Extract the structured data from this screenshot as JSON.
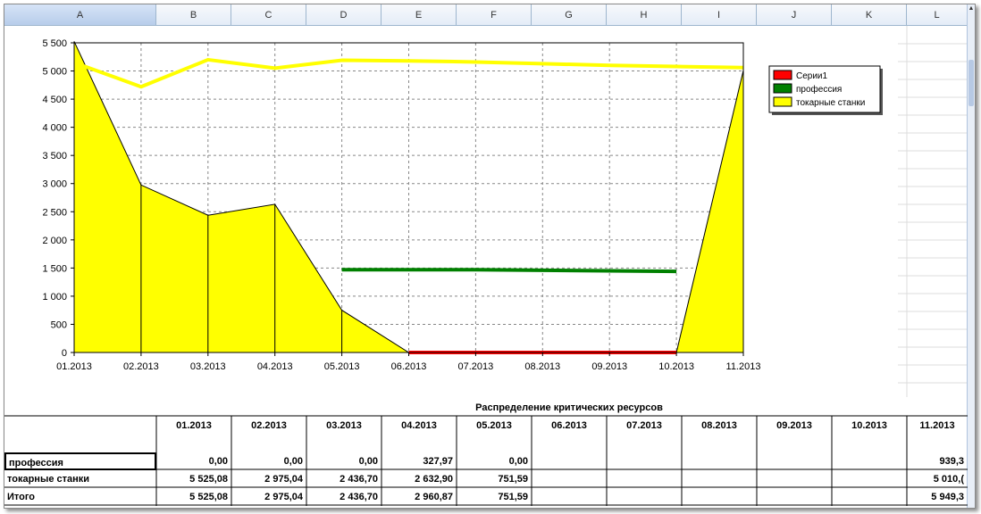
{
  "columns": [
    "A",
    "B",
    "C",
    "D",
    "E",
    "F",
    "G",
    "H",
    "I",
    "J",
    "K",
    "L"
  ],
  "selected_column": "A",
  "chart_data": {
    "type": "area",
    "categories": [
      "01.2013",
      "02.2013",
      "03.2013",
      "04.2013",
      "05.2013",
      "06.2013",
      "07.2013",
      "08.2013",
      "09.2013",
      "10.2013",
      "11.2013"
    ],
    "y_ticks": [
      "0",
      "500",
      "1 000",
      "1 500",
      "2 000",
      "2 500",
      "3 000",
      "3 500",
      "4 000",
      "4 500",
      "5 000",
      "5 500"
    ],
    "ylim": [
      0,
      5500
    ],
    "grid": true,
    "legend_position": "right",
    "series": [
      {
        "name": "Серии1",
        "type": "line",
        "color": "#ff0000",
        "values": [
          null,
          null,
          null,
          null,
          null,
          0,
          0,
          0,
          0,
          0,
          null
        ]
      },
      {
        "name": "профессия",
        "type": "line",
        "color": "#008000",
        "values": [
          null,
          null,
          null,
          null,
          1470,
          1470,
          1470,
          1460,
          1450,
          1440,
          null
        ]
      },
      {
        "name": "токарные станки",
        "type": "area",
        "color": "#ffff00",
        "values": [
          5525.08,
          2975.04,
          2436.7,
          2632.9,
          751.59,
          0,
          0,
          0,
          0,
          0,
          5010
        ]
      },
      {
        "name": "токарные станки line",
        "type": "line",
        "color": "#ffff00",
        "values": [
          5150,
          4720,
          5200,
          5050,
          5190,
          5180,
          5160,
          5130,
          5100,
          5080,
          5060
        ]
      }
    ]
  },
  "table": {
    "title": "Распределение критических ресурсов",
    "headers": [
      "01.2013",
      "02.2013",
      "03.2013",
      "04.2013",
      "05.2013",
      "06.2013",
      "07.2013",
      "08.2013",
      "09.2013",
      "10.2013",
      "11.2013"
    ],
    "rows": [
      {
        "label": "профессия",
        "values": [
          "0,00",
          "0,00",
          "0,00",
          "327,97",
          "0,00",
          "",
          "",
          "",
          "",
          "",
          "939,3"
        ]
      },
      {
        "label": "токарные станки",
        "values": [
          "5 525,08",
          "2 975,04",
          "2 436,70",
          "2 632,90",
          "751,59",
          "",
          "",
          "",
          "",
          "",
          "5 010,("
        ]
      },
      {
        "label": "Итого",
        "values": [
          "5 525,08",
          "2 975,04",
          "2 436,70",
          "2 960,87",
          "751,59",
          "",
          "",
          "",
          "",
          "",
          "5 949,3"
        ]
      }
    ]
  }
}
